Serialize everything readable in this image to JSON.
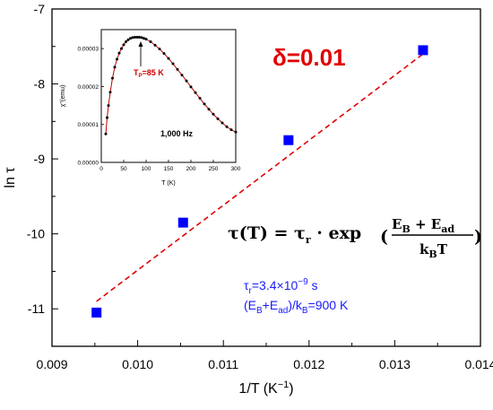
{
  "chart_data": [
    {
      "type": "scatter",
      "title": "",
      "xlabel": "1/T (K",
      "xlabel_sup": "−1",
      "xlabel_close": ")",
      "ylabel": "ln τ",
      "xlim": [
        0.009,
        0.014
      ],
      "ylim": [
        -11.5,
        -7
      ],
      "x_ticks": [
        "0.009",
        "0.010",
        "0.011",
        "0.012",
        "0.013",
        "0.014"
      ],
      "y_ticks": [
        "-7",
        "-8",
        "-9",
        "-10",
        "-11"
      ],
      "series": [
        {
          "type": "scatter",
          "color": "#0000ff",
          "marker": "square",
          "x": [
            0.00952,
            0.01053,
            0.01176,
            0.01333
          ],
          "y": [
            -11.05,
            -9.85,
            -8.75,
            -7.55
          ]
        },
        {
          "type": "line",
          "style": "dashed",
          "color": "#e00000",
          "x": [
            0.00952,
            0.01333
          ],
          "y": [
            -10.9,
            -7.6
          ]
        }
      ],
      "annotations": {
        "delta": "δ=0.01",
        "tau_r_prefix": "τ",
        "tau_r_sub": "r",
        "tau_r_mid": "=3.4×10",
        "tau_r_exp": "−9",
        "tau_r_unit": " s",
        "energy_open": "(E",
        "energy_sub1": "B",
        "energy_plus": "+E",
        "energy_sub2": "ad",
        "energy_slash": ")/k",
        "energy_sub3": "B",
        "energy_value": "=900 K",
        "equation": {
          "lhs": "τ(T) = τ",
          "lhs_sub": "r",
          "dot_exp": " · exp",
          "num1": "E",
          "num1_sub": "B",
          "num_plus": " + E",
          "num2_sub": "ad",
          "den": "k",
          "den_sub": "B",
          "den_T": "T"
        }
      }
    },
    {
      "type": "line",
      "title": "",
      "xlabel": "T (K)",
      "ylabel": "χ''(emu)",
      "xlim": [
        0,
        300
      ],
      "ylim": [
        0,
        3.5e-05
      ],
      "x_ticks": [
        "0",
        "50",
        "100",
        "150",
        "200",
        "250",
        "300"
      ],
      "y_ticks": [
        "0.00000",
        "0.00001",
        "0.00002",
        "0.00003"
      ],
      "frequency_label": "1,000 Hz",
      "peak_label": "T",
      "peak_sub": "P",
      "peak_value": "=85 K",
      "series": [
        {
          "color": "#000000",
          "marker": "circle",
          "x": [
            10,
            13,
            16,
            20,
            25,
            30,
            35,
            40,
            45,
            50,
            55,
            60,
            65,
            70,
            75,
            80,
            85,
            90,
            95,
            100,
            110,
            120,
            130,
            140,
            150,
            160,
            170,
            180,
            190,
            200,
            210,
            220,
            230,
            240,
            250,
            260,
            270,
            280,
            290,
            300
          ],
          "y": [
            7.5e-06,
            1.18e-05,
            1.5e-05,
            1.85e-05,
            2.22e-05,
            2.51e-05,
            2.72e-05,
            2.88e-05,
            3e-05,
            3.1e-05,
            3.18e-05,
            3.23e-05,
            3.27e-05,
            3.29e-05,
            3.3e-05,
            3.3e-05,
            3.3e-05,
            3.29e-05,
            3.27e-05,
            3.25e-05,
            3.18e-05,
            3.09e-05,
            2.99e-05,
            2.87e-05,
            2.74e-05,
            2.6e-05,
            2.45e-05,
            2.3e-05,
            2.15e-05,
            1.99e-05,
            1.84e-05,
            1.69e-05,
            1.54e-05,
            1.4e-05,
            1.27e-05,
            1.15e-05,
            1.04e-05,
            9.4e-06,
            8.6e-06,
            8e-06
          ]
        }
      ]
    }
  ]
}
